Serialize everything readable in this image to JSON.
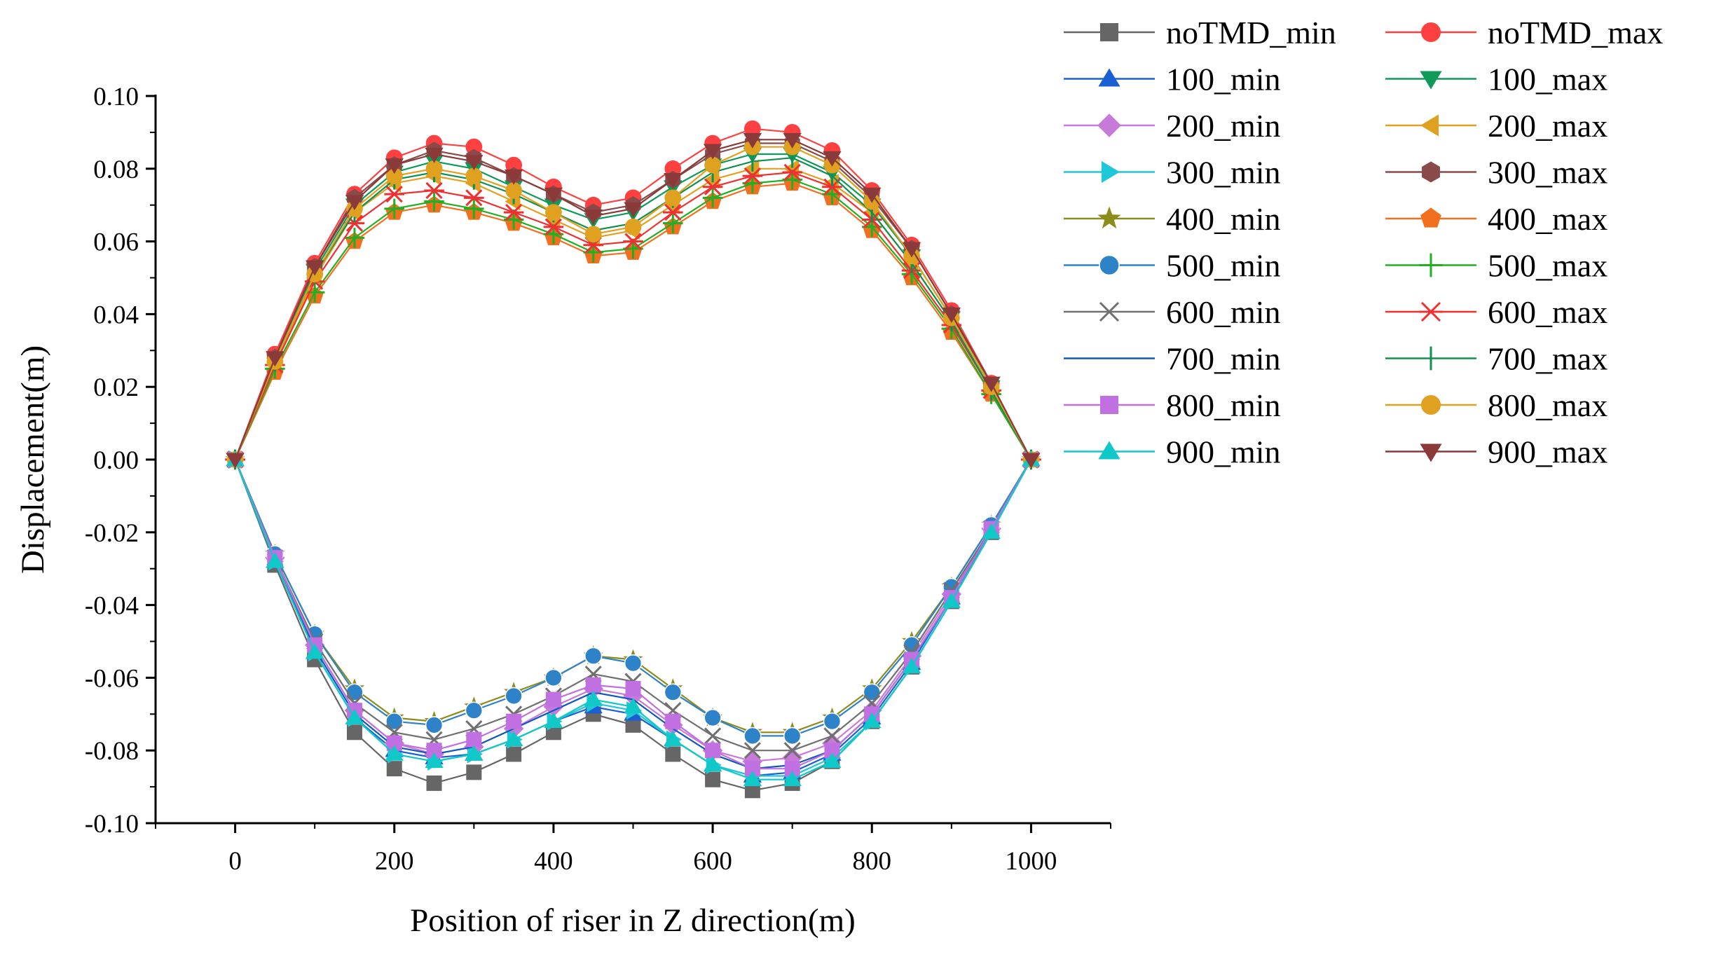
{
  "chart_data": {
    "type": "line",
    "title": "",
    "xlabel": "Position of riser in Z direction(m)",
    "ylabel": "Displacement(m)",
    "xlim": [
      -100,
      1100
    ],
    "ylim": [
      -0.1,
      0.1
    ],
    "xticks": [
      0,
      200,
      400,
      600,
      800,
      1000
    ],
    "xtick_labels": [
      "0",
      "200",
      "400",
      "600",
      "800",
      "1000"
    ],
    "yticks": [
      -0.1,
      -0.08,
      -0.06,
      -0.04,
      -0.02,
      0.0,
      0.02,
      0.04,
      0.06,
      0.08,
      0.1
    ],
    "ytick_labels": [
      "-0.10",
      "-0.08",
      "-0.06",
      "-0.04",
      "-0.02",
      "0.00",
      "0.02",
      "0.04",
      "0.06",
      "0.08",
      "0.10"
    ],
    "grid": false,
    "legend_position": "top-right, outside plot, two columns",
    "x": [
      0,
      50,
      100,
      150,
      200,
      250,
      300,
      350,
      400,
      450,
      500,
      550,
      600,
      650,
      700,
      750,
      800,
      850,
      900,
      950,
      1000
    ],
    "series": [
      {
        "name": "noTMD_min",
        "color": "#666666",
        "marker": "square",
        "values": [
          0,
          -0.029,
          -0.055,
          -0.075,
          -0.085,
          -0.089,
          -0.086,
          -0.081,
          -0.075,
          -0.07,
          -0.073,
          -0.081,
          -0.088,
          -0.091,
          -0.089,
          -0.083,
          -0.072,
          -0.057,
          -0.039,
          -0.02,
          0
        ]
      },
      {
        "name": "noTMD_max",
        "color": "#ff4040",
        "marker": "circle",
        "values": [
          0,
          0.029,
          0.054,
          0.073,
          0.083,
          0.087,
          0.086,
          0.081,
          0.075,
          0.07,
          0.072,
          0.08,
          0.087,
          0.091,
          0.09,
          0.085,
          0.074,
          0.059,
          0.041,
          0.021,
          0
        ]
      },
      {
        "name": "100_min",
        "color": "#1a5fd4",
        "marker": "triangle-up",
        "values": [
          0,
          -0.028,
          -0.053,
          -0.071,
          -0.08,
          -0.082,
          -0.081,
          -0.077,
          -0.072,
          -0.068,
          -0.07,
          -0.077,
          -0.084,
          -0.087,
          -0.086,
          -0.081,
          -0.071,
          -0.056,
          -0.038,
          -0.02,
          0
        ]
      },
      {
        "name": "100_max",
        "color": "#0f9a5a",
        "marker": "triangle-down",
        "values": [
          0,
          0.028,
          0.052,
          0.07,
          0.079,
          0.082,
          0.08,
          0.075,
          0.07,
          0.066,
          0.068,
          0.075,
          0.081,
          0.084,
          0.084,
          0.079,
          0.07,
          0.056,
          0.039,
          0.02,
          0
        ]
      },
      {
        "name": "200_min",
        "color": "#c77ad8",
        "marker": "diamond",
        "values": [
          0,
          -0.027,
          -0.051,
          -0.069,
          -0.078,
          -0.081,
          -0.079,
          -0.074,
          -0.068,
          -0.063,
          -0.065,
          -0.073,
          -0.08,
          -0.083,
          -0.082,
          -0.078,
          -0.069,
          -0.054,
          -0.037,
          -0.019,
          0
        ]
      },
      {
        "name": "200_max",
        "color": "#e0a020",
        "marker": "triangle-left",
        "values": [
          0,
          0.026,
          0.05,
          0.068,
          0.076,
          0.078,
          0.076,
          0.071,
          0.066,
          0.061,
          0.063,
          0.07,
          0.077,
          0.08,
          0.08,
          0.076,
          0.068,
          0.054,
          0.038,
          0.019,
          0
        ]
      },
      {
        "name": "300_min",
        "color": "#1ec8d8",
        "marker": "triangle-right",
        "values": [
          0,
          -0.028,
          -0.053,
          -0.071,
          -0.081,
          -0.083,
          -0.081,
          -0.077,
          -0.072,
          -0.067,
          -0.069,
          -0.077,
          -0.084,
          -0.087,
          -0.087,
          -0.082,
          -0.072,
          -0.057,
          -0.039,
          -0.02,
          0
        ]
      },
      {
        "name": "300_max",
        "color": "#8b4a4a",
        "marker": "hexagon",
        "values": [
          0,
          0.028,
          0.053,
          0.072,
          0.081,
          0.085,
          0.083,
          0.078,
          0.073,
          0.068,
          0.07,
          0.077,
          0.084,
          0.087,
          0.087,
          0.082,
          0.072,
          0.058,
          0.04,
          0.02,
          0
        ]
      },
      {
        "name": "400_min",
        "color": "#8c8c1a",
        "marker": "star",
        "values": [
          0,
          -0.026,
          -0.048,
          -0.063,
          -0.071,
          -0.072,
          -0.068,
          -0.064,
          -0.06,
          -0.054,
          -0.055,
          -0.063,
          -0.071,
          -0.075,
          -0.075,
          -0.071,
          -0.063,
          -0.05,
          -0.035,
          -0.018,
          0
        ]
      },
      {
        "name": "400_max",
        "color": "#f07020",
        "marker": "pentagon",
        "values": [
          0,
          0.024,
          0.045,
          0.06,
          0.068,
          0.07,
          0.068,
          0.065,
          0.061,
          0.056,
          0.057,
          0.064,
          0.071,
          0.075,
          0.076,
          0.072,
          0.063,
          0.05,
          0.035,
          0.018,
          0
        ]
      },
      {
        "name": "500_min",
        "color": "#2e82c8",
        "marker": "sphere",
        "values": [
          0,
          -0.026,
          -0.048,
          -0.064,
          -0.072,
          -0.073,
          -0.069,
          -0.065,
          -0.06,
          -0.054,
          -0.056,
          -0.064,
          -0.071,
          -0.076,
          -0.076,
          -0.072,
          -0.064,
          -0.051,
          -0.035,
          -0.018,
          0
        ]
      },
      {
        "name": "500_max",
        "color": "#22b022",
        "marker": "plus",
        "values": [
          0,
          0.025,
          0.046,
          0.061,
          0.069,
          0.071,
          0.069,
          0.066,
          0.062,
          0.057,
          0.058,
          0.065,
          0.072,
          0.076,
          0.077,
          0.073,
          0.064,
          0.051,
          0.036,
          0.018,
          0
        ]
      },
      {
        "name": "600_min",
        "color": "#707070",
        "marker": "x",
        "values": [
          0,
          -0.027,
          -0.05,
          -0.067,
          -0.075,
          -0.077,
          -0.074,
          -0.07,
          -0.065,
          -0.059,
          -0.061,
          -0.069,
          -0.076,
          -0.08,
          -0.08,
          -0.076,
          -0.067,
          -0.053,
          -0.036,
          -0.019,
          0
        ]
      },
      {
        "name": "600_max",
        "color": "#f03030",
        "marker": "asterisk",
        "values": [
          0,
          0.026,
          0.049,
          0.065,
          0.073,
          0.074,
          0.072,
          0.068,
          0.064,
          0.059,
          0.06,
          0.068,
          0.075,
          0.078,
          0.079,
          0.075,
          0.066,
          0.052,
          0.037,
          0.019,
          0
        ]
      },
      {
        "name": "700_min",
        "color": "#1058c0",
        "marker": "none",
        "values": [
          0,
          -0.028,
          -0.052,
          -0.07,
          -0.079,
          -0.081,
          -0.079,
          -0.074,
          -0.069,
          -0.064,
          -0.066,
          -0.074,
          -0.081,
          -0.085,
          -0.084,
          -0.08,
          -0.07,
          -0.055,
          -0.038,
          -0.019,
          0
        ]
      },
      {
        "name": "700_max",
        "color": "#109050",
        "marker": "vbar",
        "values": [
          0,
          0.027,
          0.051,
          0.068,
          0.077,
          0.079,
          0.077,
          0.073,
          0.068,
          0.063,
          0.065,
          0.072,
          0.079,
          0.082,
          0.083,
          0.078,
          0.068,
          0.054,
          0.038,
          0.019,
          0
        ]
      },
      {
        "name": "800_min",
        "color": "#c070e0",
        "marker": "square",
        "values": [
          0,
          -0.027,
          -0.051,
          -0.069,
          -0.078,
          -0.08,
          -0.077,
          -0.072,
          -0.066,
          -0.062,
          -0.063,
          -0.072,
          -0.08,
          -0.085,
          -0.085,
          -0.08,
          -0.07,
          -0.055,
          -0.038,
          -0.019,
          0
        ]
      },
      {
        "name": "800_max",
        "color": "#e0a020",
        "marker": "circle",
        "values": [
          0,
          0.027,
          0.051,
          0.069,
          0.078,
          0.08,
          0.078,
          0.074,
          0.068,
          0.062,
          0.064,
          0.072,
          0.081,
          0.086,
          0.086,
          0.081,
          0.071,
          0.056,
          0.039,
          0.02,
          0
        ]
      },
      {
        "name": "900_min",
        "color": "#10c8c8",
        "marker": "triangle-up",
        "values": [
          0,
          -0.028,
          -0.053,
          -0.071,
          -0.081,
          -0.083,
          -0.081,
          -0.077,
          -0.072,
          -0.066,
          -0.068,
          -0.077,
          -0.084,
          -0.088,
          -0.088,
          -0.083,
          -0.072,
          -0.057,
          -0.039,
          -0.02,
          0
        ]
      },
      {
        "name": "900_max",
        "color": "#8b3a3a",
        "marker": "triangle-down",
        "values": [
          0,
          0.028,
          0.053,
          0.071,
          0.081,
          0.084,
          0.082,
          0.078,
          0.073,
          0.067,
          0.069,
          0.077,
          0.085,
          0.088,
          0.088,
          0.083,
          0.073,
          0.058,
          0.04,
          0.021,
          0
        ]
      }
    ]
  }
}
